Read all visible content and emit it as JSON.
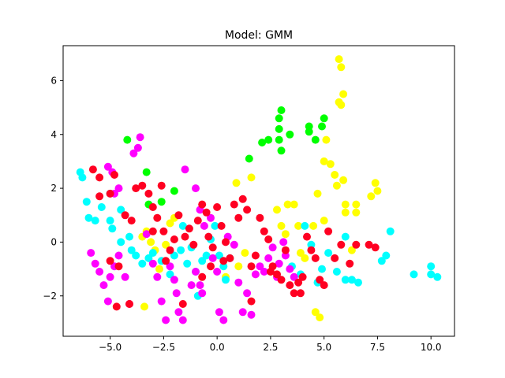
{
  "chart_data": {
    "type": "scatter",
    "title": "Model: GMM",
    "xlabel": "",
    "ylabel": "",
    "xlim": [
      -7.2,
      11.1
    ],
    "ylim": [
      -3.5,
      7.3
    ],
    "xticks": [
      -5.0,
      -2.5,
      0.0,
      2.5,
      5.0,
      7.5,
      10.0
    ],
    "xtick_labels": [
      "−5.0",
      "−2.5",
      "0.0",
      "2.5",
      "5.0",
      "7.5",
      "10.0"
    ],
    "yticks": [
      -2,
      0,
      2,
      4,
      6
    ],
    "ytick_labels": [
      "−2",
      "0",
      "2",
      "4",
      "6"
    ],
    "grid": false,
    "legend": "none",
    "series": [
      {
        "color": "#00ff00",
        "points": [
          [
            -4.2,
            3.8
          ],
          [
            -3.3,
            2.6
          ],
          [
            -3.2,
            1.4
          ],
          [
            -2.6,
            1.5
          ],
          [
            -2.0,
            1.9
          ],
          [
            1.5,
            3.1
          ],
          [
            2.1,
            3.7
          ],
          [
            2.4,
            3.8
          ],
          [
            2.9,
            3.8
          ],
          [
            2.9,
            4.2
          ],
          [
            2.9,
            4.6
          ],
          [
            3.0,
            3.4
          ],
          [
            3.0,
            4.9
          ],
          [
            3.4,
            4.0
          ],
          [
            4.3,
            4.1
          ],
          [
            4.3,
            4.3
          ],
          [
            4.6,
            3.8
          ],
          [
            4.9,
            4.3
          ],
          [
            5.0,
            4.6
          ]
        ]
      },
      {
        "color": "#ffff00",
        "points": [
          [
            -3.5,
            0.2
          ],
          [
            -3.3,
            0.4
          ],
          [
            -3.1,
            0.0
          ],
          [
            -2.9,
            -0.3
          ],
          [
            -2.4,
            -0.1
          ],
          [
            -2.2,
            0.7
          ],
          [
            -2.0,
            0.9
          ],
          [
            -3.4,
            -2.4
          ],
          [
            -2.7,
            -1.0
          ],
          [
            0.4,
            -1.3
          ],
          [
            1.0,
            -0.9
          ],
          [
            1.3,
            -0.4
          ],
          [
            0.9,
            2.2
          ],
          [
            1.6,
            2.4
          ],
          [
            2.8,
            1.2
          ],
          [
            3.0,
            0.6
          ],
          [
            3.2,
            0.3
          ],
          [
            3.3,
            1.4
          ],
          [
            3.6,
            1.4
          ],
          [
            3.8,
            0.6
          ],
          [
            3.9,
            -0.4
          ],
          [
            4.1,
            -0.6
          ],
          [
            4.5,
            0.6
          ],
          [
            4.7,
            1.8
          ],
          [
            5.0,
            0.8
          ],
          [
            5.0,
            3.0
          ],
          [
            5.1,
            3.8
          ],
          [
            5.3,
            2.9
          ],
          [
            5.5,
            2.5
          ],
          [
            5.6,
            2.1
          ],
          [
            5.7,
            5.2
          ],
          [
            5.8,
            5.1
          ],
          [
            5.7,
            6.8
          ],
          [
            5.8,
            6.5
          ],
          [
            5.9,
            5.5
          ],
          [
            5.9,
            2.3
          ],
          [
            6.0,
            1.4
          ],
          [
            6.0,
            1.1
          ],
          [
            6.3,
            -0.3
          ],
          [
            6.5,
            1.1
          ],
          [
            6.5,
            1.4
          ],
          [
            7.2,
            1.7
          ],
          [
            7.4,
            2.2
          ],
          [
            7.5,
            1.9
          ],
          [
            4.6,
            -2.6
          ],
          [
            4.8,
            -2.8
          ]
        ]
      },
      {
        "color": "#00ffff",
        "points": [
          [
            -6.4,
            2.6
          ],
          [
            -6.3,
            2.4
          ],
          [
            -6.1,
            1.5
          ],
          [
            -6.0,
            0.9
          ],
          [
            -5.7,
            0.8
          ],
          [
            -5.4,
            1.3
          ],
          [
            -5.0,
            1.8
          ],
          [
            -5.0,
            0.8
          ],
          [
            -4.9,
            0.5
          ],
          [
            -4.5,
            0.0
          ],
          [
            -4.5,
            1.2
          ],
          [
            -4.1,
            0.2
          ],
          [
            -4.0,
            -0.3
          ],
          [
            -3.8,
            -0.5
          ],
          [
            -3.5,
            -0.8
          ],
          [
            -3.2,
            -0.6
          ],
          [
            -3.0,
            -0.4
          ],
          [
            -2.6,
            -0.7
          ],
          [
            -2.2,
            -1.2
          ],
          [
            -2.0,
            -0.5
          ],
          [
            -1.7,
            -0.3
          ],
          [
            -1.6,
            0.6
          ],
          [
            -1.4,
            -0.8
          ],
          [
            -1.2,
            -0.2
          ],
          [
            -1.0,
            -1.1
          ],
          [
            -0.7,
            -0.7
          ],
          [
            -0.5,
            -0.5
          ],
          [
            -0.3,
            0.1
          ],
          [
            -0.1,
            0.6
          ],
          [
            0.1,
            -0.5
          ],
          [
            0.3,
            -0.9
          ],
          [
            0.4,
            -1.4
          ],
          [
            0.6,
            -0.6
          ],
          [
            -0.9,
            -2.0
          ],
          [
            3.5,
            -0.9
          ],
          [
            3.9,
            -1.2
          ],
          [
            4.1,
            0.6
          ],
          [
            4.4,
            -0.1
          ],
          [
            4.7,
            -1.5
          ],
          [
            4.9,
            -1.0
          ],
          [
            5.2,
            -0.4
          ],
          [
            5.6,
            -1.1
          ],
          [
            6.0,
            -1.4
          ],
          [
            6.3,
            -1.4
          ],
          [
            6.6,
            -1.5
          ],
          [
            6.0,
            0.2
          ],
          [
            7.7,
            -0.7
          ],
          [
            7.9,
            -0.5
          ],
          [
            8.1,
            0.4
          ],
          [
            9.2,
            -1.2
          ],
          [
            10.0,
            -0.9
          ],
          [
            10.0,
            -1.2
          ],
          [
            10.3,
            -1.3
          ]
        ]
      },
      {
        "color": "#ff00ff",
        "points": [
          [
            -5.9,
            -0.4
          ],
          [
            -5.7,
            -0.8
          ],
          [
            -5.5,
            -1.1
          ],
          [
            -5.3,
            -1.6
          ],
          [
            -5.0,
            -1.3
          ],
          [
            -4.8,
            -0.9
          ],
          [
            -5.1,
            -2.2
          ],
          [
            -4.6,
            -0.5
          ],
          [
            -4.3,
            -1.3
          ],
          [
            -4.1,
            -2.3
          ],
          [
            -3.9,
            3.3
          ],
          [
            -3.7,
            3.5
          ],
          [
            -3.6,
            3.9
          ],
          [
            -5.1,
            2.8
          ],
          [
            -4.9,
            2.6
          ],
          [
            -4.6,
            2.0
          ],
          [
            -4.8,
            1.8
          ],
          [
            -3.3,
            0.3
          ],
          [
            -3.0,
            -0.8
          ],
          [
            -2.8,
            -1.3
          ],
          [
            -2.6,
            -2.2
          ],
          [
            -2.4,
            -2.9
          ],
          [
            -2.2,
            -0.9
          ],
          [
            -2.0,
            -1.4
          ],
          [
            -1.9,
            -1.9
          ],
          [
            -1.8,
            -2.6
          ],
          [
            -1.6,
            -2.9
          ],
          [
            -1.5,
            2.7
          ],
          [
            -1.2,
            -1.6
          ],
          [
            -1.0,
            -1.1
          ],
          [
            -0.8,
            -1.6
          ],
          [
            -0.7,
            -1.9
          ],
          [
            -1.0,
            2.0
          ],
          [
            -0.8,
            1.2
          ],
          [
            -0.6,
            0.6
          ],
          [
            -0.3,
            0.9
          ],
          [
            -0.2,
            -0.6
          ],
          [
            0.0,
            -1.1
          ],
          [
            0.1,
            -2.6
          ],
          [
            0.3,
            -2.9
          ],
          [
            0.5,
            0.2
          ],
          [
            0.8,
            -0.1
          ],
          [
            1.0,
            -1.5
          ],
          [
            1.2,
            -2.6
          ],
          [
            1.4,
            -1.9
          ],
          [
            1.6,
            -2.7
          ],
          [
            1.8,
            -1.2
          ],
          [
            2.0,
            -0.9
          ],
          [
            2.2,
            -1.1
          ],
          [
            2.4,
            -0.6
          ],
          [
            2.6,
            -0.2
          ],
          [
            2.8,
            -1.3
          ],
          [
            2.9,
            -0.8
          ],
          [
            3.1,
            0.0
          ],
          [
            3.2,
            -0.5
          ],
          [
            3.4,
            -1.0
          ],
          [
            3.6,
            -1.3
          ]
        ]
      },
      {
        "color": "#ff0022",
        "points": [
          [
            -5.8,
            2.7
          ],
          [
            -5.5,
            2.4
          ],
          [
            -5.5,
            1.7
          ],
          [
            -5.0,
            1.8
          ],
          [
            -4.8,
            2.5
          ],
          [
            -4.3,
            1.0
          ],
          [
            -4.0,
            0.8
          ],
          [
            -3.8,
            2.0
          ],
          [
            -3.5,
            2.1
          ],
          [
            -3.2,
            1.8
          ],
          [
            -3.0,
            1.3
          ],
          [
            -2.8,
            0.9
          ],
          [
            -2.6,
            2.1
          ],
          [
            -2.5,
            0.4
          ],
          [
            -2.4,
            -0.7
          ],
          [
            -2.2,
            -0.3
          ],
          [
            -2.0,
            0.1
          ],
          [
            -1.8,
            1.0
          ],
          [
            -1.5,
            0.2
          ],
          [
            -1.3,
            0.5
          ],
          [
            -1.1,
            -0.1
          ],
          [
            -0.9,
            0.8
          ],
          [
            -0.7,
            1.4
          ],
          [
            -0.5,
            1.1
          ],
          [
            -0.4,
            0.2
          ],
          [
            -0.2,
            -0.2
          ],
          [
            0.0,
            1.3
          ],
          [
            0.2,
            0.6
          ],
          [
            0.4,
            0.0
          ],
          [
            0.6,
            -0.6
          ],
          [
            0.8,
            1.4
          ],
          [
            1.0,
            0.9
          ],
          [
            1.2,
            1.6
          ],
          [
            1.4,
            1.2
          ],
          [
            1.6,
            -0.9
          ],
          [
            1.8,
            -0.5
          ],
          [
            2.0,
            0.9
          ],
          [
            2.2,
            0.4
          ],
          [
            2.4,
            0.1
          ],
          [
            2.6,
            -0.9
          ],
          [
            2.8,
            -1.2
          ],
          [
            3.0,
            -1.4
          ],
          [
            3.2,
            -0.3
          ],
          [
            3.4,
            -1.6
          ],
          [
            3.6,
            -1.9
          ],
          [
            3.8,
            -1.5
          ],
          [
            4.0,
            -1.3
          ],
          [
            4.2,
            0.2
          ],
          [
            4.4,
            -0.3
          ],
          [
            4.6,
            -0.6
          ],
          [
            4.8,
            -1.4
          ],
          [
            5.0,
            -1.6
          ],
          [
            5.2,
            0.4
          ],
          [
            5.5,
            -0.6
          ],
          [
            5.8,
            -0.1
          ],
          [
            6.2,
            -0.8
          ],
          [
            6.5,
            -0.1
          ],
          [
            7.1,
            -0.1
          ],
          [
            7.4,
            -0.2
          ],
          [
            -4.6,
            -0.9
          ],
          [
            -5.0,
            -0.7
          ],
          [
            -4.1,
            -2.3
          ],
          [
            -4.7,
            -2.4
          ],
          [
            -3.0,
            0.4
          ],
          [
            -1.6,
            -2.3
          ],
          [
            -0.7,
            -1.3
          ],
          [
            -0.3,
            -0.9
          ],
          [
            0.3,
            -0.7
          ],
          [
            1.6,
            -2.2
          ],
          [
            2.5,
            -1.1
          ],
          [
            3.9,
            -1.9
          ]
        ]
      }
    ]
  }
}
